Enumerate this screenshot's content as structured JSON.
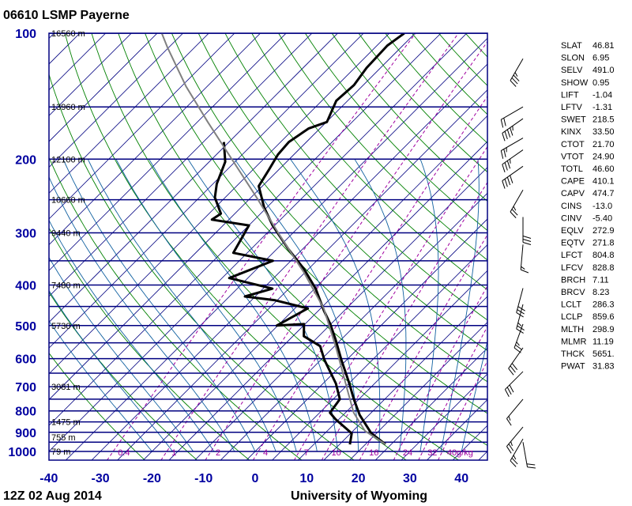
{
  "header": {
    "title": "06610 LSMP Payerne"
  },
  "footer": {
    "time": "12Z 02 Aug 2014",
    "source": "University of Wyoming"
  },
  "colors": {
    "isobar": "#000080",
    "isotherm": "#000080",
    "dry_adiabat": "#008000",
    "moist_adiabat": "#1060a0",
    "mixing_ratio": "#a000a0",
    "temperature": "#000000",
    "dewpoint": "#000000",
    "parcel": "#808080",
    "axis_label": "#0000a0"
  },
  "chart_data": {
    "type": "line",
    "subtype": "skew-t log-p",
    "xlabel": "",
    "ylabel": "",
    "x_ticks": [
      "-40",
      "-30",
      "-20",
      "-10",
      "0",
      "10",
      "20",
      "30",
      "40"
    ],
    "x_tick_values": [
      -40,
      -30,
      -20,
      -10,
      0,
      10,
      20,
      30,
      40
    ],
    "y_ticks": [
      "100",
      "200",
      "300",
      "400",
      "500",
      "600",
      "700",
      "800",
      "900",
      "1000"
    ],
    "y_tick_values": [
      100,
      200,
      300,
      400,
      500,
      600,
      700,
      800,
      900,
      1000
    ],
    "ylim": [
      1000,
      100
    ],
    "y_scale": "log",
    "isobars": [
      100,
      150,
      200,
      250,
      300,
      350,
      400,
      450,
      500,
      550,
      600,
      650,
      700,
      750,
      800,
      850,
      900,
      950,
      1000
    ],
    "heights": [
      {
        "p": 100,
        "label": "16560 m"
      },
      {
        "p": 150,
        "label": "13960 m"
      },
      {
        "p": 200,
        "label": "12100 m"
      },
      {
        "p": 250,
        "label": "10660 m"
      },
      {
        "p": 300,
        "label": "9440 m"
      },
      {
        "p": 400,
        "label": "7480 m"
      },
      {
        "p": 500,
        "label": "5730 m"
      },
      {
        "p": 700,
        "label": "3081 m"
      },
      {
        "p": 850,
        "label": "1475 m"
      },
      {
        "p": 925,
        "label": "755 m"
      },
      {
        "p": 1000,
        "label": "79 m"
      }
    ],
    "mixing_ratios": [
      {
        "w": 0.4,
        "label": "0.4"
      },
      {
        "w": 1,
        "label": "1"
      },
      {
        "w": 2,
        "label": "2"
      },
      {
        "w": 4,
        "label": "4"
      },
      {
        "w": 7,
        "label": "7"
      },
      {
        "w": 10,
        "label": "10"
      },
      {
        "w": 16,
        "label": "16"
      },
      {
        "w": 24,
        "label": "24"
      },
      {
        "w": 32,
        "label": "32"
      },
      {
        "w": 40,
        "label": "40g/kg"
      }
    ],
    "series": [
      {
        "key": "temperature",
        "points": [
          [
            962,
            23.9
          ],
          [
            905,
            19.0
          ],
          [
            818,
            13.2
          ],
          [
            750,
            9.0
          ],
          [
            688,
            5.1
          ],
          [
            603,
            -1.1
          ],
          [
            541,
            -6.0
          ],
          [
            496,
            -10.1
          ],
          [
            461,
            -13.9
          ],
          [
            408,
            -19.8
          ],
          [
            366,
            -25.9
          ],
          [
            328,
            -32.8
          ],
          [
            288,
            -40.4
          ],
          [
            261,
            -45.5
          ],
          [
            232,
            -50.7
          ],
          [
            212,
            -51.9
          ],
          [
            195,
            -53.1
          ],
          [
            182,
            -53.4
          ],
          [
            169,
            -52.2
          ],
          [
            163,
            -49.9
          ],
          [
            145,
            -52.2
          ],
          [
            133,
            -51.8
          ],
          [
            121,
            -52.7
          ],
          [
            107,
            -53.0
          ],
          [
            100,
            -52.1
          ]
        ]
      },
      {
        "key": "dewpoint",
        "points": [
          [
            962,
            17.0
          ],
          [
            905,
            15.2
          ],
          [
            837,
            9.3
          ],
          [
            808,
            7.0
          ],
          [
            750,
            6.3
          ],
          [
            688,
            2.5
          ],
          [
            603,
            -4.4
          ],
          [
            560,
            -7.8
          ],
          [
            530,
            -12.9
          ],
          [
            496,
            -15.2
          ],
          [
            500,
            -20.2
          ],
          [
            455,
            -17.5
          ],
          [
            435,
            -25.4
          ],
          [
            426,
            -32.0
          ],
          [
            408,
            -28.2
          ],
          [
            385,
            -38.6
          ],
          [
            350,
            -33.5
          ],
          [
            335,
            -42.7
          ],
          [
            288,
            -45.0
          ],
          [
            279,
            -53.3
          ],
          [
            270,
            -52.7
          ],
          [
            247,
            -57.0
          ],
          [
            229,
            -59.3
          ],
          [
            203,
            -61.9
          ],
          [
            182,
            -66.0
          ]
        ]
      },
      {
        "key": "parcel",
        "points": [
          [
            962,
            23.9
          ],
          [
            893,
            17.3
          ],
          [
            808,
            11.6
          ],
          [
            718,
            6.3
          ],
          [
            565,
            -4.4
          ],
          [
            455,
            -14.4
          ],
          [
            374,
            -25.1
          ],
          [
            307,
            -36.6
          ],
          [
            247,
            -48.9
          ],
          [
            195,
            -62.6
          ],
          [
            163,
            -73.0
          ],
          [
            134,
            -84.1
          ],
          [
            108,
            -95.3
          ],
          [
            100,
            -99.1
          ]
        ]
      }
    ],
    "winds_kt": [
      {
        "p": 115,
        "dir": 210,
        "spd": 35
      },
      {
        "p": 150,
        "dir": 240,
        "spd": 20
      },
      {
        "p": 160,
        "dir": 235,
        "spd": 45
      },
      {
        "p": 178,
        "dir": 240,
        "spd": 25
      },
      {
        "p": 190,
        "dir": 235,
        "spd": 35
      },
      {
        "p": 208,
        "dir": 235,
        "spd": 40
      },
      {
        "p": 237,
        "dir": 210,
        "spd": 25
      },
      {
        "p": 275,
        "dir": 180,
        "spd": 30
      },
      {
        "p": 320,
        "dir": 185,
        "spd": 15
      },
      {
        "p": 407,
        "dir": 195,
        "spd": 30
      },
      {
        "p": 445,
        "dir": 195,
        "spd": 25
      },
      {
        "p": 496,
        "dir": 200,
        "spd": 25
      },
      {
        "p": 565,
        "dir": 215,
        "spd": 30
      },
      {
        "p": 644,
        "dir": 225,
        "spd": 30
      },
      {
        "p": 750,
        "dir": 220,
        "spd": 15
      },
      {
        "p": 874,
        "dir": 220,
        "spd": 25
      },
      {
        "p": 933,
        "dir": 210,
        "spd": 25
      },
      {
        "p": 950,
        "dir": 170,
        "spd": 20
      }
    ]
  },
  "indices": [
    {
      "k": "SLAT",
      "v": "46.81"
    },
    {
      "k": "SLON",
      "v": "6.95"
    },
    {
      "k": "SELV",
      "v": "491.0"
    },
    {
      "k": "SHOW",
      "v": "0.95"
    },
    {
      "k": "LIFT",
      "v": "-1.04"
    },
    {
      "k": "LFTV",
      "v": "-1.31"
    },
    {
      "k": "SWET",
      "v": "218.5"
    },
    {
      "k": "KINX",
      "v": "33.50"
    },
    {
      "k": "CTOT",
      "v": "21.70"
    },
    {
      "k": "VTOT",
      "v": "24.90"
    },
    {
      "k": "TOTL",
      "v": "46.60"
    },
    {
      "k": "CAPE",
      "v": "410.1"
    },
    {
      "k": "CAPV",
      "v": "474.7"
    },
    {
      "k": "CINS",
      "v": "-13.0"
    },
    {
      "k": "CINV",
      "v": "-5.40"
    },
    {
      "k": "EQLV",
      "v": "272.9"
    },
    {
      "k": "EQTV",
      "v": "271.8"
    },
    {
      "k": "LFCT",
      "v": "804.8"
    },
    {
      "k": "LFCV",
      "v": "828.8"
    },
    {
      "k": "BRCH",
      "v": "7.11"
    },
    {
      "k": "BRCV",
      "v": "8.23"
    },
    {
      "k": "LCLT",
      "v": "286.3"
    },
    {
      "k": "LCLP",
      "v": "859.6"
    },
    {
      "k": "MLTH",
      "v": "298.9"
    },
    {
      "k": "MLMR",
      "v": "11.19"
    },
    {
      "k": "THCK",
      "v": "5651."
    },
    {
      "k": "PWAT",
      "v": "31.83"
    }
  ]
}
